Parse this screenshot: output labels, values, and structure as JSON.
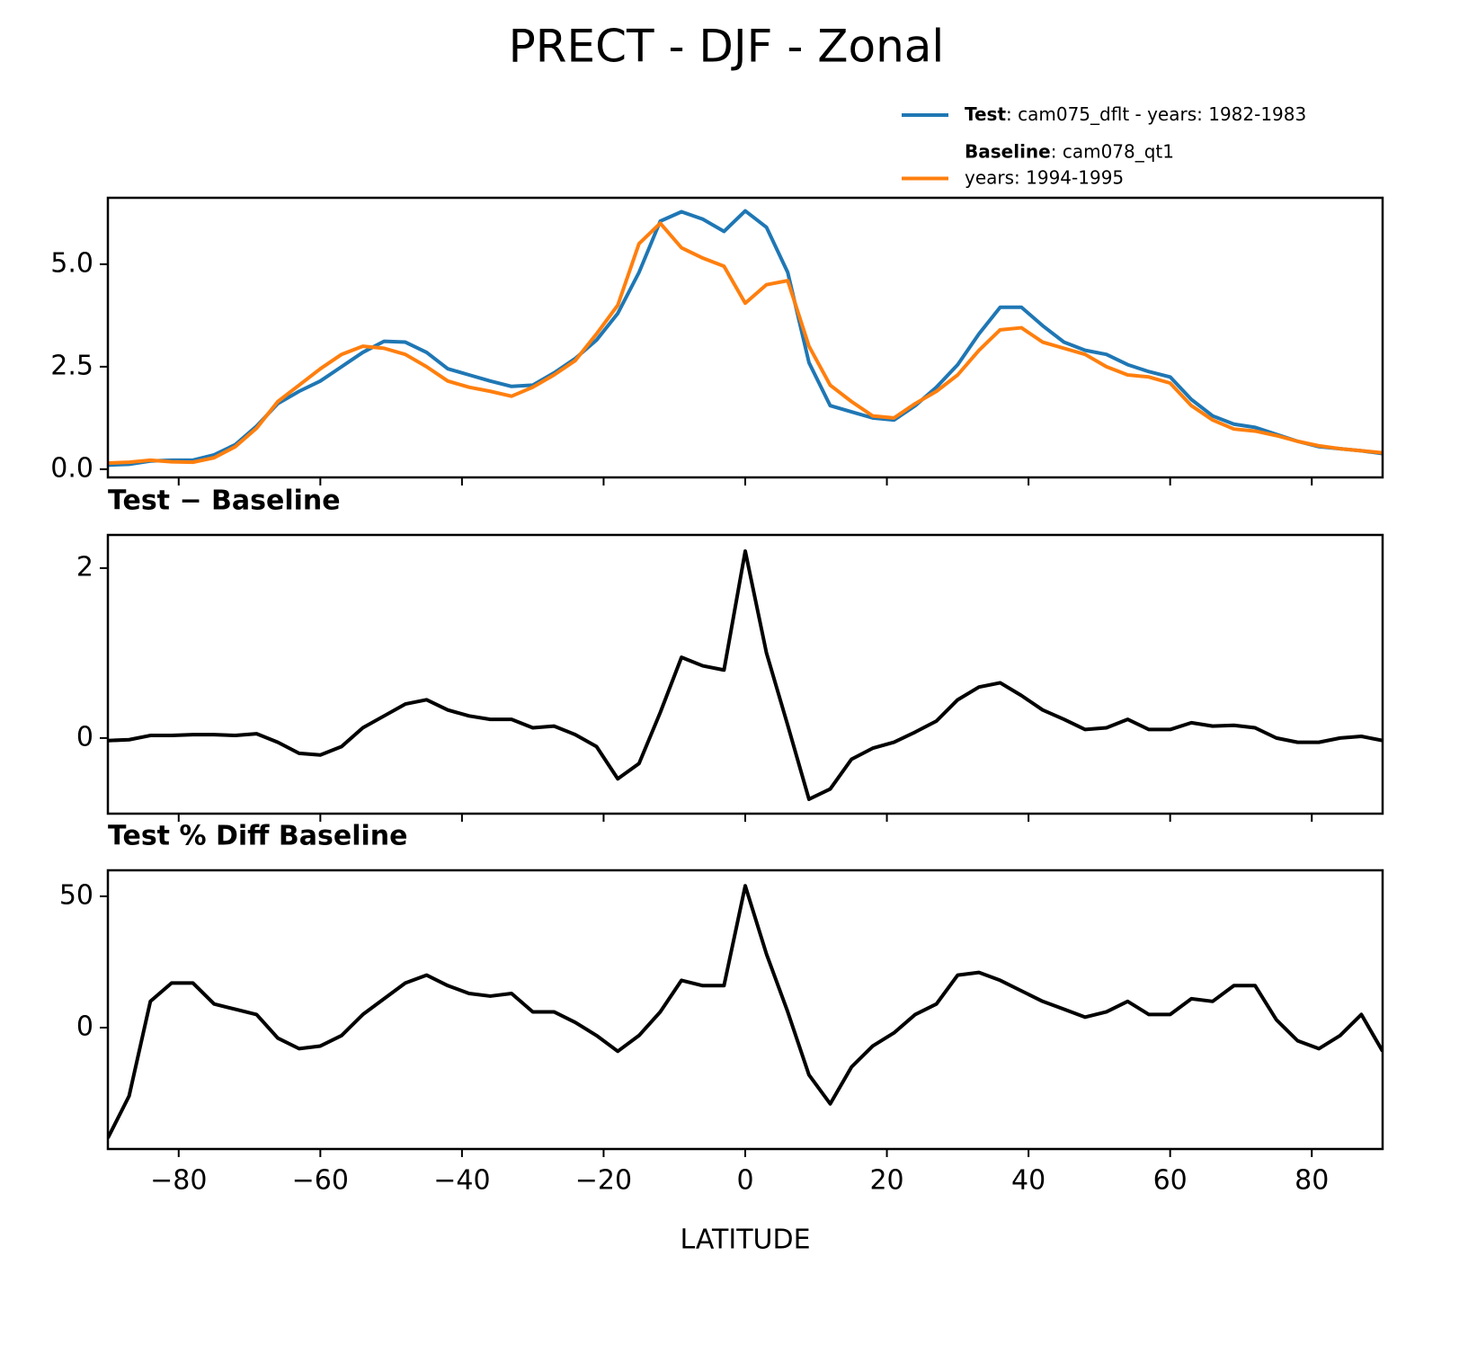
{
  "title": "PRECT - DJF - Zonal",
  "chart_data": [
    {
      "type": "line",
      "legend": "upper right",
      "xlim": [
        -90,
        90
      ],
      "ylim": [
        -0.2,
        6.62
      ],
      "yticks": [
        {
          "value": 0,
          "label": "0.0"
        },
        {
          "value": 2.5,
          "label": "2.5"
        },
        {
          "value": 5,
          "label": "5.0"
        }
      ],
      "x": [
        -90,
        -87,
        -84,
        -81,
        -78,
        -75,
        -72,
        -69,
        -66,
        -63,
        -60,
        -57,
        -54,
        -51,
        -48,
        -45,
        -42,
        -39,
        -36,
        -33,
        -30,
        -27,
        -24,
        -21,
        -18,
        -15,
        -12,
        -9,
        -6,
        -3,
        0,
        3,
        6,
        9,
        12,
        15,
        18,
        21,
        24,
        27,
        30,
        33,
        36,
        39,
        42,
        45,
        48,
        51,
        54,
        57,
        60,
        63,
        66,
        69,
        72,
        75,
        78,
        81,
        84,
        87,
        90
      ],
      "series": [
        {
          "name": "Test",
          "legend_text": [
            ": cam075_dflt - years: 1982-1983"
          ],
          "color": "#1f77b4",
          "values": [
            0.1,
            0.12,
            0.2,
            0.22,
            0.22,
            0.35,
            0.6,
            1.05,
            1.6,
            1.9,
            2.15,
            2.5,
            2.85,
            3.12,
            3.1,
            2.85,
            2.45,
            2.3,
            2.15,
            2.02,
            2.05,
            2.35,
            2.7,
            3.15,
            3.8,
            4.8,
            6.05,
            6.28,
            6.1,
            5.8,
            6.3,
            5.9,
            4.8,
            2.6,
            1.55,
            1.4,
            1.25,
            1.2,
            1.55,
            2.0,
            2.55,
            3.3,
            3.95,
            3.95,
            3.5,
            3.1,
            2.9,
            2.8,
            2.55,
            2.38,
            2.25,
            1.7,
            1.3,
            1.1,
            1.02,
            0.85,
            0.68,
            0.55,
            0.5,
            0.45,
            0.38
          ]
        },
        {
          "name": "Baseline",
          "legend_text": [
            ": cam078_qt1",
            "years: 1994-1995"
          ],
          "color": "#ff7f0e",
          "values": [
            0.15,
            0.17,
            0.22,
            0.18,
            0.17,
            0.28,
            0.55,
            1.0,
            1.65,
            2.05,
            2.45,
            2.8,
            3.0,
            2.95,
            2.8,
            2.5,
            2.15,
            2.0,
            1.9,
            1.78,
            2.0,
            2.3,
            2.65,
            3.3,
            4.0,
            5.5,
            6.0,
            5.4,
            5.15,
            4.95,
            4.05,
            4.5,
            4.6,
            3.0,
            2.05,
            1.65,
            1.3,
            1.25,
            1.6,
            1.9,
            2.3,
            2.9,
            3.4,
            3.45,
            3.1,
            2.95,
            2.8,
            2.5,
            2.3,
            2.25,
            2.1,
            1.55,
            1.2,
            0.98,
            0.93,
            0.82,
            0.68,
            0.57,
            0.5,
            0.45,
            0.4
          ]
        }
      ]
    },
    {
      "type": "line",
      "title": "Test − Baseline",
      "xlim": [
        -90,
        90
      ],
      "ylim": [
        -0.89,
        2.39
      ],
      "yticks": [
        0,
        2
      ],
      "x": [
        -90,
        -87,
        -84,
        -81,
        -78,
        -75,
        -72,
        -69,
        -66,
        -63,
        -60,
        -57,
        -54,
        -51,
        -48,
        -45,
        -42,
        -39,
        -36,
        -33,
        -30,
        -27,
        -24,
        -21,
        -18,
        -15,
        -12,
        -9,
        -6,
        -3,
        0,
        3,
        6,
        9,
        12,
        15,
        18,
        21,
        24,
        27,
        30,
        33,
        36,
        39,
        42,
        45,
        48,
        51,
        54,
        57,
        60,
        63,
        66,
        69,
        72,
        75,
        78,
        81,
        84,
        87,
        90
      ],
      "series": [
        {
          "color": "#000000",
          "values": [
            -0.03,
            -0.02,
            0.03,
            0.03,
            0.04,
            0.04,
            0.03,
            0.05,
            -0.05,
            -0.18,
            -0.2,
            -0.1,
            0.12,
            0.26,
            0.4,
            0.45,
            0.33,
            0.26,
            0.22,
            0.22,
            0.12,
            0.14,
            0.04,
            -0.1,
            -0.48,
            -0.3,
            0.3,
            0.95,
            0.85,
            0.8,
            2.2,
            1.0,
            0.15,
            -0.72,
            -0.6,
            -0.25,
            -0.12,
            -0.05,
            0.07,
            0.2,
            0.45,
            0.6,
            0.65,
            0.5,
            0.33,
            0.22,
            0.1,
            0.12,
            0.22,
            0.1,
            0.1,
            0.18,
            0.14,
            0.15,
            0.12,
            0.0,
            -0.05,
            -0.05,
            0.0,
            0.02,
            -0.03
          ]
        }
      ]
    },
    {
      "type": "line",
      "title": "Test % Diff Baseline",
      "xlabel": "LATITUDE",
      "xlim": [
        -90,
        90
      ],
      "ylim": [
        -46.2,
        59.9
      ],
      "yticks": [
        0,
        50
      ],
      "xticks": [
        {
          "value": -80,
          "label": "−80"
        },
        {
          "value": -60,
          "label": "−60"
        },
        {
          "value": -40,
          "label": "−40"
        },
        {
          "value": -20,
          "label": "−20"
        },
        0,
        20,
        40,
        60,
        80
      ],
      "x": [
        -90,
        -87,
        -84,
        -81,
        -78,
        -75,
        -72,
        -69,
        -66,
        -63,
        -60,
        -57,
        -54,
        -51,
        -48,
        -45,
        -42,
        -39,
        -36,
        -33,
        -30,
        -27,
        -24,
        -21,
        -18,
        -15,
        -12,
        -9,
        -6,
        -3,
        0,
        3,
        6,
        9,
        12,
        15,
        18,
        21,
        24,
        27,
        30,
        33,
        36,
        39,
        42,
        45,
        48,
        51,
        54,
        57,
        60,
        63,
        66,
        69,
        72,
        75,
        78,
        81,
        84,
        87,
        90
      ],
      "series": [
        {
          "color": "#000000",
          "values": [
            -42,
            -26,
            10,
            17,
            17,
            9,
            7,
            5,
            -4,
            -8,
            -7,
            -3,
            5,
            11,
            17,
            20,
            16,
            13,
            12,
            13,
            6,
            6,
            2,
            -3,
            -9,
            -3,
            6,
            18,
            16,
            16,
            54,
            28,
            6,
            -18,
            -29,
            -15,
            -7,
            -2,
            5,
            9,
            20,
            21,
            18,
            14,
            10,
            7,
            4,
            6,
            10,
            5,
            5,
            11,
            10,
            16,
            16,
            3,
            -5,
            -8,
            -3,
            5,
            -9
          ]
        }
      ]
    }
  ]
}
